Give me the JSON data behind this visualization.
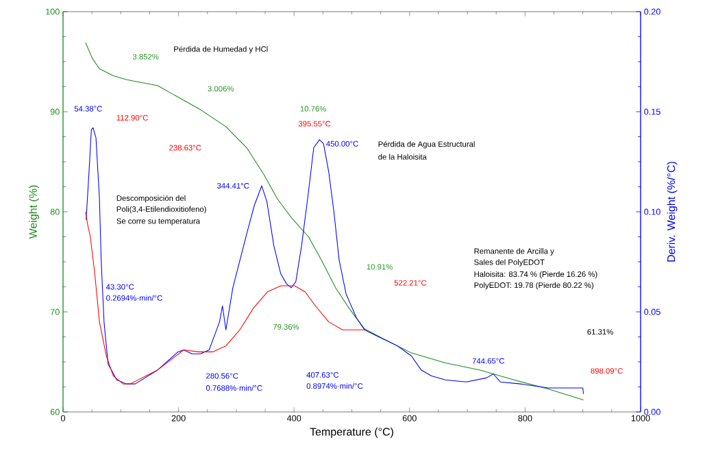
{
  "chart_data": {
    "type": "line",
    "xlabel": "Temperature (°C)",
    "ylabel": "Weight (%)",
    "y2label": "Deriv. Weight (%/°C)",
    "xlim": [
      0,
      1000
    ],
    "xticks": [
      0,
      200,
      400,
      600,
      800,
      1000
    ],
    "ylim": [
      60,
      100
    ],
    "yticks": [
      60,
      70,
      80,
      90,
      100
    ],
    "y2lim": [
      0,
      0.2
    ],
    "y2ticks": [
      {
        "value": 0,
        "label": "0.00"
      },
      {
        "value": 0.05,
        "label": "0.05"
      },
      {
        "value": 0.1,
        "label": "0.10"
      },
      {
        "value": 0.15,
        "label": "0.15"
      },
      {
        "value": 0.2,
        "label": "0.20"
      }
    ],
    "grid": false,
    "series": [
      {
        "color": "#1a8a1a",
        "x": [
          39,
          51,
          63,
          87,
          110,
          164,
          238,
          282,
          318,
          348,
          371,
          397,
          425,
          448,
          472,
          496,
          522,
          555,
          603,
          662,
          721,
          781,
          840,
          901
        ],
        "values": [
          96.9,
          95.3,
          94.3,
          93.6,
          93.2,
          92.6,
          90.2,
          88.5,
          86.4,
          83.7,
          81.3,
          79.3,
          77.5,
          75.1,
          72.4,
          70.3,
          68.3,
          67.3,
          65.9,
          64.9,
          64.2,
          63.2,
          62.3,
          61.2
        ]
      },
      {
        "color": "#0000ff",
        "axis": "y2",
        "x": [
          40,
          45,
          49,
          52,
          57,
          63,
          66,
          71,
          78,
          93,
          110,
          125,
          164,
          199,
          209,
          223,
          238,
          253,
          271,
          276,
          282,
          294,
          318,
          331,
          344,
          353,
          365,
          377,
          387,
          395,
          403,
          413,
          425,
          434,
          444,
          451,
          460,
          469,
          478,
          490,
          508,
          522,
          543,
          579,
          603,
          620,
          638,
          662,
          698,
          733,
          745,
          757,
          792,
          840,
          900,
          901
        ],
        "values": [
          0.096,
          0.12,
          0.141,
          0.142,
          0.137,
          0.107,
          0.076,
          0.045,
          0.024,
          0.016,
          0.014,
          0.014,
          0.021,
          0.03,
          0.031,
          0.029,
          0.029,
          0.031,
          0.045,
          0.053,
          0.041,
          0.062,
          0.089,
          0.103,
          0.113,
          0.105,
          0.083,
          0.069,
          0.064,
          0.062,
          0.065,
          0.083,
          0.11,
          0.132,
          0.136,
          0.134,
          0.12,
          0.1,
          0.076,
          0.059,
          0.047,
          0.041,
          0.038,
          0.033,
          0.028,
          0.021,
          0.018,
          0.016,
          0.015,
          0.017,
          0.019,
          0.015,
          0.014,
          0.012,
          0.012,
          0.009
        ]
      },
      {
        "color": "#ff0000",
        "axis": "y2",
        "x": [
          39,
          43,
          47,
          55,
          63,
          75,
          87,
          104,
          116,
          164,
          209,
          235,
          259,
          282,
          306,
          330,
          354,
          377,
          401,
          419,
          437,
          460,
          484,
          508,
          522
        ],
        "values": [
          0.1,
          0.093,
          0.088,
          0.069,
          0.045,
          0.028,
          0.018,
          0.014,
          0.014,
          0.021,
          0.031,
          0.03,
          0.03,
          0.033,
          0.041,
          0.052,
          0.06,
          0.063,
          0.063,
          0.06,
          0.053,
          0.045,
          0.041,
          0.041,
          0.041
        ]
      }
    ],
    "annotations": [
      "Pérdida de Humedad y HCl",
      "3.852%",
      "112.90°C",
      "3.006%",
      "238.63°C",
      "10.76%",
      "395.55°C",
      "54.38°C",
      "344.41°C",
      "450.00°C",
      "Pérdida de Agua Estructural",
      "de la Haloisita",
      "Descomposición del",
      "Poli(3,4-Etilendioxitiofeno)",
      "Se corre su temperatura",
      "43.30°C",
      "0.2694%·min/°C",
      "280.56°C",
      "0.7688%·min/°C",
      "407.63°C",
      "0.8974%·min/°C",
      "79.36%",
      "10.91%",
      "522.21°C",
      "Remanente de Arcilla y",
      "Sales del PolyEDOT",
      "Haloisita: 83.74 % (Pierde 16.26 %)",
      "PolyEDOT: 19.78 (Pierde 80.22 %)",
      "744.65°C",
      "61.31%",
      "898.09°C"
    ]
  }
}
